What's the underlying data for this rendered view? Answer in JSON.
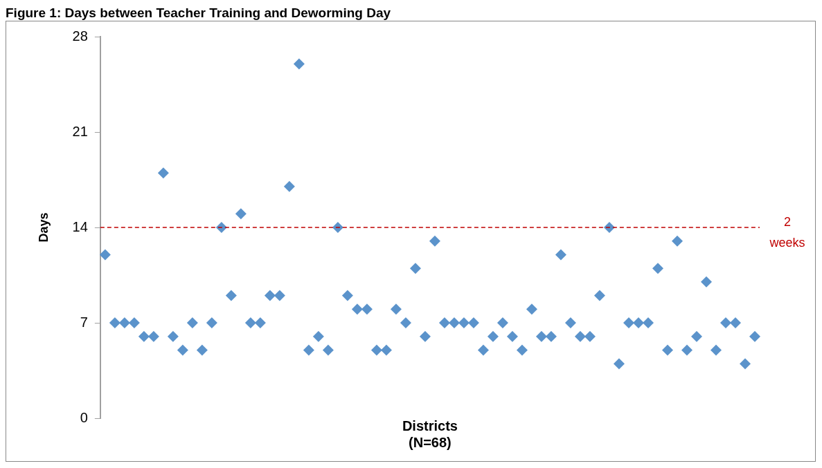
{
  "chart_data": {
    "type": "scatter",
    "title": "Figure 1: Days between Teacher Training and Deworming Day",
    "xlabel": "Districts\n(N=68)",
    "ylabel": "Days",
    "categories": [
      null,
      null,
      null,
      null,
      null,
      null,
      null,
      null,
      null,
      null,
      null,
      null,
      null,
      null,
      null,
      null,
      null,
      null,
      null,
      null,
      null,
      null,
      null,
      null,
      null,
      null,
      null,
      null,
      null,
      null,
      null,
      null,
      null,
      null,
      null,
      null,
      null,
      null,
      null,
      null,
      null,
      null,
      null,
      null,
      null,
      null,
      null,
      null,
      null,
      null,
      null,
      null,
      null,
      null,
      null,
      null,
      null,
      null,
      null,
      null,
      null,
      null,
      null,
      null,
      null,
      null,
      null,
      null
    ],
    "series": [
      {
        "color": "#5b93cb",
        "values": [
          12,
          7,
          7,
          7,
          6,
          6,
          18,
          6,
          5,
          7,
          5,
          7,
          14,
          9,
          15,
          7,
          7,
          9,
          9,
          17,
          26,
          5,
          6,
          5,
          14,
          9,
          8,
          8,
          5,
          5,
          8,
          7,
          11,
          6,
          13,
          7,
          7,
          7,
          7,
          5,
          6,
          7,
          6,
          5,
          8,
          6,
          6,
          12,
          7,
          6,
          6,
          9,
          14,
          4,
          7,
          7,
          7,
          11,
          5,
          13,
          5,
          6,
          10,
          5,
          7,
          7,
          4,
          6
        ]
      }
    ],
    "ylim": [
      0,
      28
    ],
    "yticks": [
      0,
      7,
      14,
      21,
      28
    ],
    "grid": false,
    "legend": false,
    "marker": "diamond",
    "tick_labels": "y",
    "ref_lines": [
      {
        "axis": "y",
        "value": 14,
        "label": "2 weeks",
        "color": "#c00000",
        "line_style": "dashed"
      }
    ]
  }
}
